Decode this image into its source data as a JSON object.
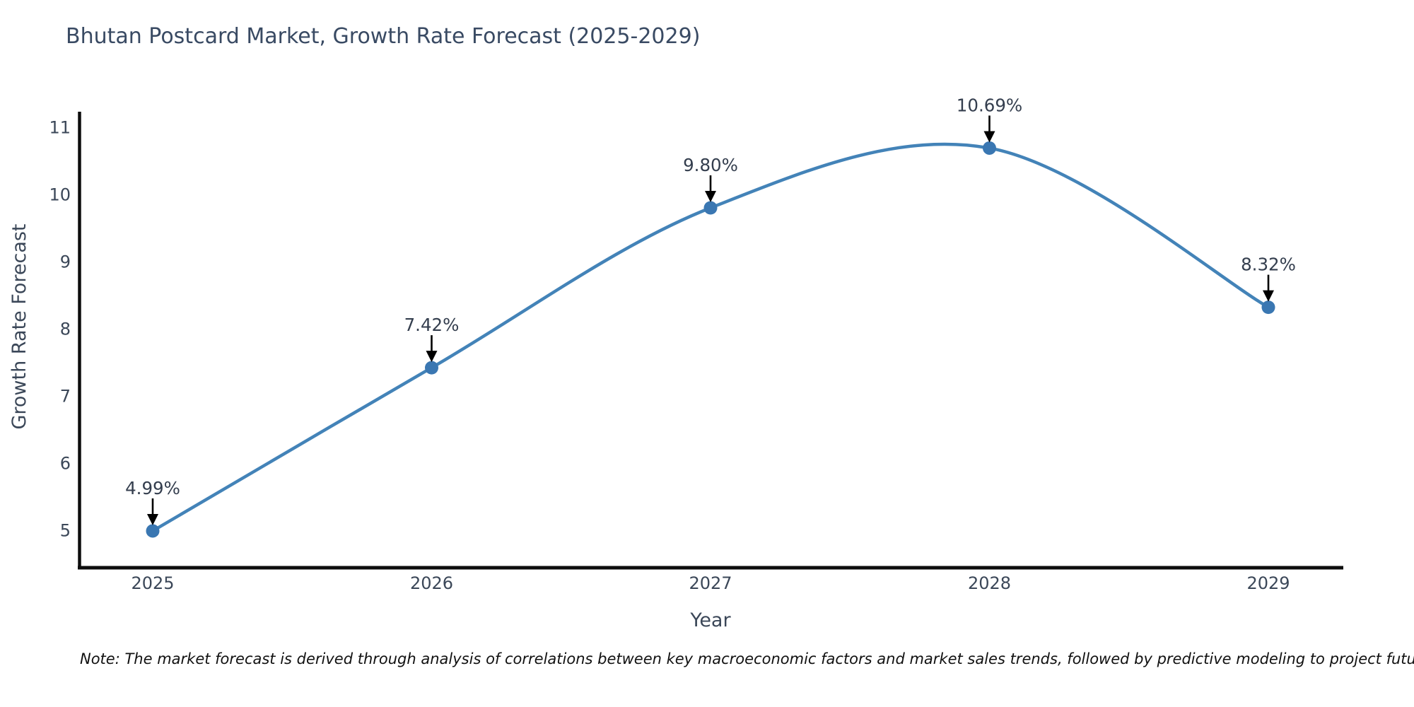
{
  "note": "Note: The market forecast is derived through analysis of correlations between key macroeconomic factors and market sales trends, followed by predictive modeling to project future sales",
  "chart_data": {
    "type": "line",
    "title": "Bhutan Postcard Market, Growth Rate Forecast (2025-2029)",
    "xlabel": "Year",
    "ylabel": "Growth Rate Forecast",
    "x": [
      2025,
      2026,
      2027,
      2028,
      2029
    ],
    "values": [
      4.99,
      7.42,
      9.8,
      10.69,
      8.32
    ],
    "point_labels": [
      "4.99%",
      "7.42%",
      "9.80%",
      "10.69%",
      "8.32%"
    ],
    "y_ticks": [
      5,
      6,
      7,
      8,
      9,
      10,
      11
    ],
    "ylim": [
      4.45,
      11.25
    ],
    "xlim": [
      2024.73,
      2029.27
    ],
    "grid": false,
    "legend": "none",
    "line_style": "smooth-spline",
    "marker": "circle",
    "annotation_arrows": "down-to-point",
    "colors": {
      "line": "#4383b8",
      "marker": "#3a77b2",
      "axis": "#0d0d0d",
      "tick_text": "#3b4758",
      "title_text": "#394a63",
      "annotation_text": "#343e4e",
      "arrow": "#000000",
      "background": "#ffffff"
    }
  }
}
